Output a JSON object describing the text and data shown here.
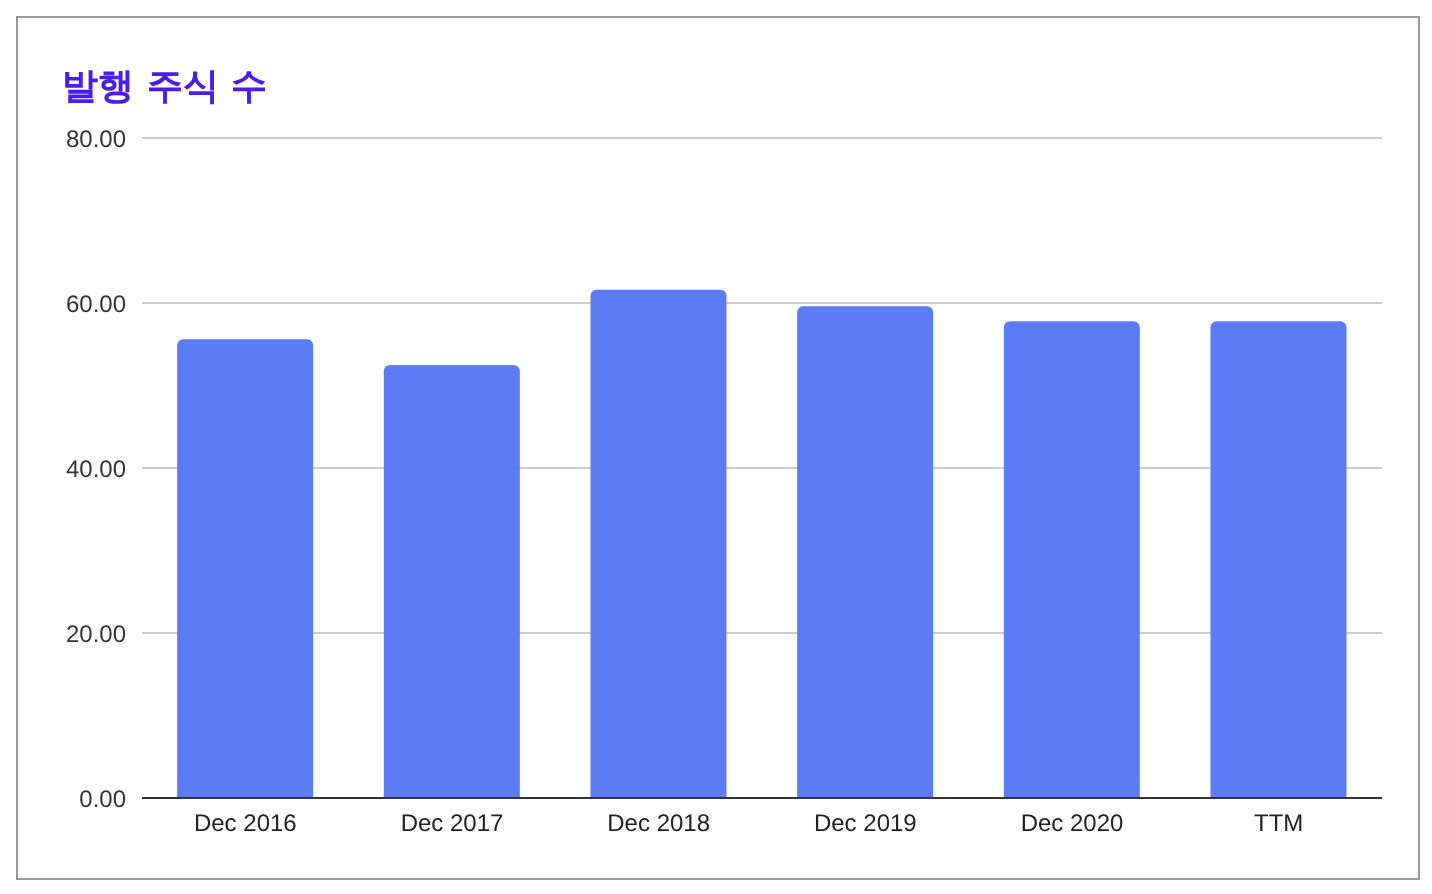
{
  "chart_data": {
    "type": "bar",
    "title": "발행 주식 수",
    "categories": [
      "Dec 2016",
      "Dec 2017",
      "Dec 2018",
      "Dec 2019",
      "Dec 2020",
      "TTM"
    ],
    "values": [
      55.6,
      52.5,
      61.6,
      59.6,
      57.8,
      57.8
    ],
    "color": "#5b7cf2",
    "ylim": [
      0,
      80
    ],
    "yticks": [
      {
        "value": 0,
        "label": "0.00"
      },
      {
        "value": 20,
        "label": "20.00"
      },
      {
        "value": 40,
        "label": "40.00"
      },
      {
        "value": 60,
        "label": "60.00"
      },
      {
        "value": 80,
        "label": "80.00"
      }
    ],
    "grid": "y"
  }
}
